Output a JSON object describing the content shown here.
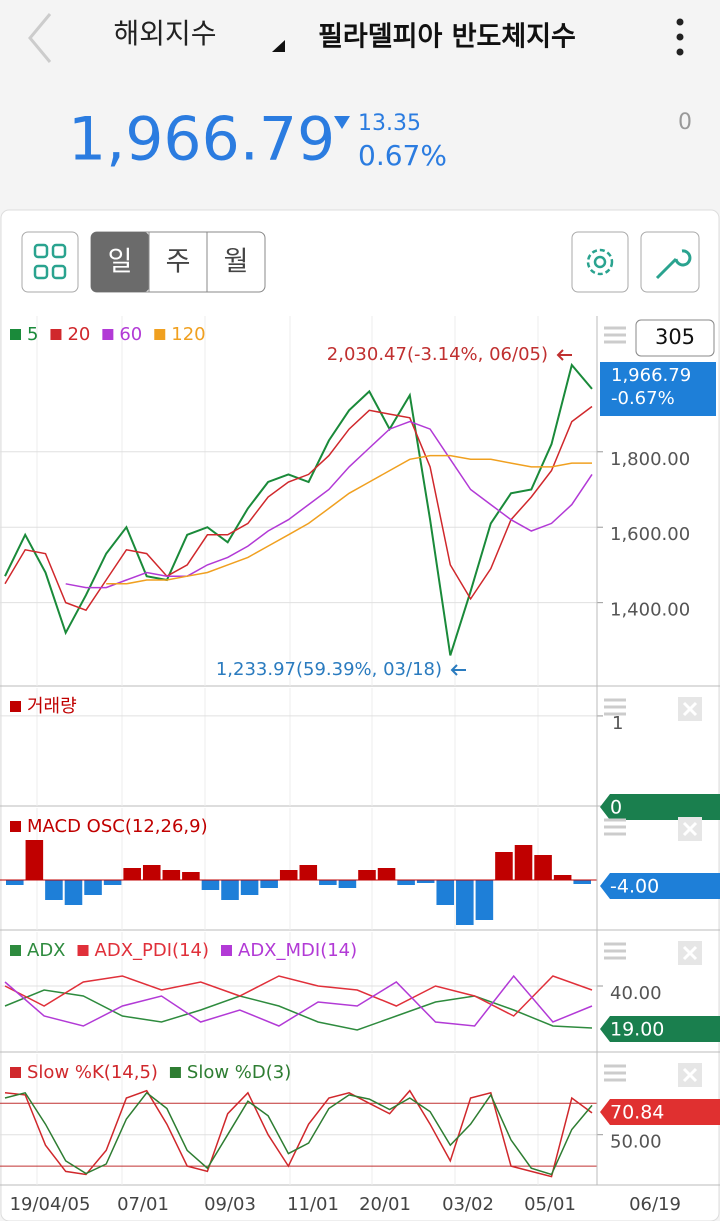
{
  "header": {
    "market": "해외지수",
    "index_name": "필라델피아 반도체지수",
    "price": "1,966.79",
    "change": "13.35",
    "change_pct": "0.67%",
    "right_value": "0"
  },
  "toolbar": {
    "periods": [
      "일",
      "주",
      "월"
    ],
    "selected": 0
  },
  "x_labels": [
    "19/04/05",
    "07/01",
    "09/03",
    "11/01",
    "20/01",
    "03/02",
    "05/01",
    "06/19"
  ],
  "chart_data": [
    {
      "type": "line",
      "count": "305",
      "current_label": [
        "1,966.79",
        "-0.67%"
      ],
      "annotations": [
        {
          "text": "2,030.47(-3.14%, 06/05)",
          "color": "#c03030"
        },
        {
          "text": "1,233.97(59.39%, 03/18)",
          "color": "#2a7bbf"
        }
      ],
      "ylim": [
        1179,
        2160
      ],
      "yticks": [
        {
          "value": 1400,
          "label": "1,400.00"
        },
        {
          "value": 1600,
          "label": "1,600.00"
        },
        {
          "value": 1800,
          "label": "1,800.00"
        }
      ],
      "series": [
        {
          "name": "5",
          "color": "#1a8a3a",
          "values": [
            1470,
            1580,
            1480,
            1320,
            1420,
            1530,
            1600,
            1470,
            1460,
            1580,
            1600,
            1560,
            1650,
            1720,
            1740,
            1720,
            1830,
            1910,
            1960,
            1860,
            1950,
            1620,
            1260,
            1430,
            1610,
            1690,
            1700,
            1820,
            2030,
            1966.79
          ]
        },
        {
          "name": "20",
          "color": "#d0282c",
          "values": [
            1450,
            1540,
            1530,
            1400,
            1380,
            1460,
            1540,
            1530,
            1470,
            1500,
            1580,
            1580,
            1610,
            1680,
            1720,
            1740,
            1790,
            1860,
            1910,
            1900,
            1890,
            1760,
            1500,
            1410,
            1490,
            1620,
            1680,
            1750,
            1880,
            1920
          ]
        },
        {
          "name": "60",
          "color": "#b23ad6",
          "values": [
            null,
            null,
            null,
            1450,
            1440,
            1440,
            1460,
            1480,
            1470,
            1470,
            1500,
            1520,
            1550,
            1590,
            1620,
            1660,
            1700,
            1760,
            1810,
            1860,
            1880,
            1860,
            1780,
            1700,
            1660,
            1620,
            1590,
            1610,
            1660,
            1740
          ]
        },
        {
          "name": "120",
          "color": "#f0a020",
          "values": [
            null,
            null,
            null,
            null,
            null,
            1450,
            1450,
            1460,
            1460,
            1470,
            1480,
            1500,
            1520,
            1550,
            1580,
            1610,
            1650,
            1690,
            1720,
            1750,
            1780,
            1790,
            1790,
            1780,
            1780,
            1770,
            1760,
            1760,
            1770,
            1770
          ]
        }
      ]
    },
    {
      "type": "bar",
      "current_label": "0",
      "ylim": [
        0,
        1.31
      ],
      "yticks": [
        1
      ],
      "series": [
        {
          "name": "거래량",
          "color": "#c00000",
          "values": []
        }
      ]
    },
    {
      "type": "bar",
      "current_label": "-4.00",
      "ylim": [
        -50,
        72
      ],
      "series": [
        {
          "name": "MACD OSC(12,26,9)",
          "color": "#c00000",
          "negative_color": "#1e7fd8",
          "values": [
            -5,
            40,
            -20,
            -25,
            -15,
            -5,
            12,
            15,
            10,
            8,
            -10,
            -20,
            -15,
            -8,
            10,
            15,
            -5,
            -8,
            10,
            12,
            -5,
            -3,
            -25,
            -45,
            -40,
            28,
            35,
            25,
            5,
            -4
          ]
        }
      ]
    },
    {
      "type": "line",
      "current_label": "19.00",
      "ylim": [
        7,
        67
      ],
      "yticks": [
        {
          "value": 40,
          "label": "40.00"
        }
      ],
      "series": [
        {
          "name": "ADX",
          "color": "#2e8b3e",
          "values": [
            30,
            38,
            35,
            25,
            22,
            28,
            35,
            30,
            22,
            18,
            25,
            32,
            35,
            28,
            20,
            19
          ]
        },
        {
          "name": "ADX_PDI(14)",
          "color": "#e0303a",
          "values": [
            40,
            30,
            42,
            45,
            38,
            42,
            35,
            45,
            40,
            38,
            30,
            40,
            35,
            25,
            45,
            38
          ]
        },
        {
          "name": "ADX_MDI(14)",
          "color": "#b23ad6",
          "values": [
            42,
            25,
            20,
            30,
            35,
            22,
            28,
            20,
            32,
            30,
            42,
            22,
            20,
            45,
            22,
            30
          ]
        }
      ]
    },
    {
      "type": "line",
      "current_label": "70.84",
      "ylim": [
        2,
        127
      ],
      "yticks": [
        {
          "value": 50,
          "label": "50.00"
        }
      ],
      "ref_lines": [
        20,
        80
      ],
      "series": [
        {
          "name": "Slow %K(14,5)",
          "color": "#d0282c",
          "values": [
            90,
            88,
            40,
            15,
            12,
            35,
            85,
            92,
            60,
            20,
            15,
            70,
            90,
            50,
            20,
            60,
            85,
            90,
            80,
            70,
            92,
            60,
            25,
            85,
            90,
            20,
            15,
            10,
            85,
            70.84
          ]
        },
        {
          "name": "Slow %D(3)",
          "color": "#2e7d32",
          "values": [
            85,
            90,
            60,
            25,
            13,
            22,
            65,
            90,
            75,
            35,
            18,
            50,
            82,
            68,
            32,
            42,
            75,
            88,
            84,
            74,
            85,
            72,
            40,
            60,
            88,
            45,
            18,
            12,
            55,
            78
          ]
        }
      ]
    }
  ]
}
